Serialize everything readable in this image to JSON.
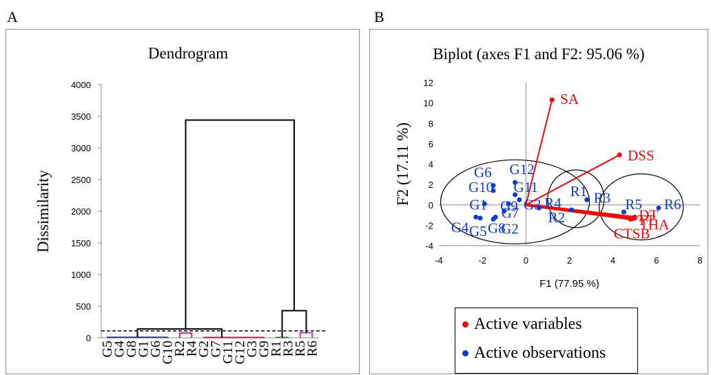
{
  "panels": {
    "a_letter": "A",
    "b_letter": "B"
  },
  "chart_data": [
    {
      "type": "dendrogram",
      "title": "Dendrogram",
      "ylabel": "Dissimilarity",
      "xlabel": "",
      "ylim": [
        0,
        4000
      ],
      "yticks": [
        0,
        500,
        1000,
        1500,
        2000,
        2500,
        3000,
        3500,
        4000
      ],
      "grid": false,
      "leaves": [
        "G5",
        "G4",
        "G8",
        "G1",
        "G6",
        "G10",
        "R2",
        "R4",
        "G2",
        "G7",
        "G11",
        "G12",
        "G3",
        "G9",
        "R1",
        "R3",
        "R5",
        "R6"
      ],
      "merges": [
        {
          "left": [
            0,
            5
          ],
          "right": [
            6,
            13
          ],
          "height": 140
        },
        {
          "left": [
            0,
            13
          ],
          "right": [
            14,
            17
          ],
          "height": 3440
        },
        {
          "left": [
            14,
            15
          ],
          "right": [
            16,
            17
          ],
          "height": 430
        }
      ],
      "clusters": [
        {
          "range": [
            0,
            5
          ],
          "color": "#1f3a93",
          "height": 8
        },
        {
          "range": [
            6,
            7
          ],
          "color": "#d6246e",
          "height": 75
        },
        {
          "range": [
            8,
            13
          ],
          "color": "#b0144f",
          "height": 6
        },
        {
          "range": [
            14,
            15
          ],
          "color": "#2e7d32",
          "height": 6
        },
        {
          "range": [
            16,
            17
          ],
          "color": "#b040c0",
          "height": 80
        }
      ],
      "cut_line": 110
    },
    {
      "type": "scatter",
      "title": "Biplot (axes F1 and F2: 95.06 %)",
      "xlabel": "F1 (77.95 %)",
      "ylabel": "F2 (17.11 %)",
      "xlim": [
        -4,
        8
      ],
      "ylim": [
        -4,
        12
      ],
      "xticks": [
        -4,
        -2,
        0,
        2,
        4,
        6,
        8
      ],
      "yticks": [
        -4,
        -2,
        0,
        2,
        4,
        6,
        8,
        10,
        12
      ],
      "grid": false,
      "legend_position": "bottom",
      "series": [
        {
          "name": "Active variables",
          "color": "#ff0000",
          "points": [
            {
              "label": "SA",
              "x": 1.2,
              "y": 10.3
            },
            {
              "label": "DSS",
              "x": 4.3,
              "y": 4.9
            },
            {
              "label": "DT",
              "x": 5.0,
              "y": -1.2
            },
            {
              "label": "TT",
              "x": 5.0,
              "y": -1.3
            },
            {
              "label": "THA",
              "x": 4.9,
              "y": -1.35
            },
            {
              "label": "CTSB",
              "x": 4.8,
              "y": -1.4
            }
          ]
        },
        {
          "name": "Active observations",
          "color": "#0b3be0",
          "points": [
            {
              "label": "G12",
              "x": -0.5,
              "y": 2.2
            },
            {
              "label": "G6",
              "x": -1.5,
              "y": 1.9
            },
            {
              "label": "G11",
              "x": -0.5,
              "y": 1.0
            },
            {
              "label": "G10",
              "x": -1.5,
              "y": 1.4
            },
            {
              "label": "G1",
              "x": -1.9,
              "y": 0.1
            },
            {
              "label": "G9",
              "x": -0.8,
              "y": 0.1
            },
            {
              "label": "G3",
              "x": -0.3,
              "y": 0.5
            },
            {
              "label": "G7",
              "x": -1.0,
              "y": -0.6
            },
            {
              "label": "G4",
              "x": -2.3,
              "y": -1.2
            },
            {
              "label": "G5",
              "x": -2.1,
              "y": -1.3
            },
            {
              "label": "G8",
              "x": -1.5,
              "y": -1.4
            },
            {
              "label": "G2",
              "x": -1.4,
              "y": -1.2
            },
            {
              "label": "R4",
              "x": 0.6,
              "y": -0.3
            },
            {
              "label": "R1",
              "x": 2.1,
              "y": -0.5
            },
            {
              "label": "R2",
              "x": 2.1,
              "y": -0.5
            },
            {
              "label": "R3",
              "x": 2.8,
              "y": 0.5
            },
            {
              "label": "R5",
              "x": 4.5,
              "y": -0.7
            },
            {
              "label": "R6",
              "x": 6.1,
              "y": -0.3
            }
          ]
        }
      ],
      "group_ellipses": [
        "G1-G12",
        "R1-R4",
        "R5-R6"
      ]
    }
  ]
}
